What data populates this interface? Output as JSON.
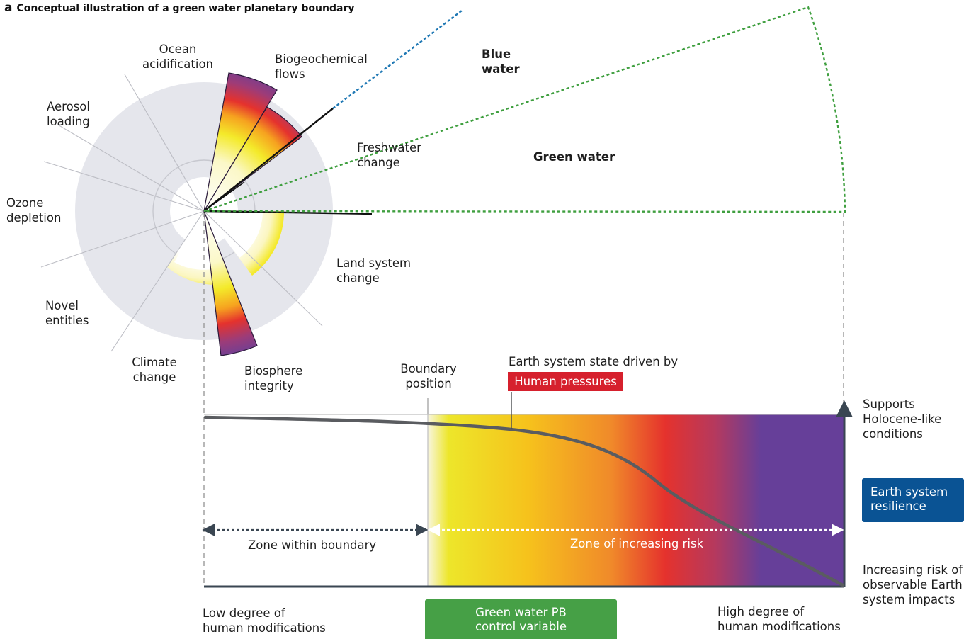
{
  "figure": {
    "panel_label": "a",
    "title": "Conceptual illustration of a green water planetary boundary"
  },
  "wheel": {
    "categories": [
      "Ocean\nacidification",
      "Biogeochemical\nflows",
      "Aerosol\nloading",
      "Freshwater\nchange",
      "Ozone\ndepletion",
      "Land system\nchange",
      "Novel\nentities",
      "Climate\nchange",
      "Biosphere\nintegrity"
    ],
    "water_components": [
      "Blue\nwater",
      "Green water"
    ]
  },
  "lower_panel": {
    "curve_label": "Earth system state driven by",
    "human_pressures": "Human pressures",
    "boundary_label": "Boundary\nposition",
    "zone_within": "Zone within boundary",
    "zone_risk": "Zone of increasing risk",
    "top_right": "Supports\nHolocene-like\nconditions",
    "resilience": "Earth system\nresilience",
    "bottom_right": "Increasing risk of\nobservable Earth\nsystem impacts",
    "x_low": "Low degree of\nhuman modifications",
    "x_high": "High degree of\nhuman modifications",
    "x_variable": "Green water PB\ncontrol variable"
  },
  "colors": {
    "safe_space": "#e5e6ec",
    "blue_water": "#1f78b4",
    "green_water": "#3f9f3f",
    "human_pressures": "#d6202d",
    "resilience": "#0a5394",
    "control_variable": "#46a046",
    "risk_gradient": [
      "#f7f4d8",
      "#ede62a",
      "#f6c21c",
      "#f0832a",
      "#e5322d",
      "#b5395e",
      "#663f99"
    ]
  }
}
